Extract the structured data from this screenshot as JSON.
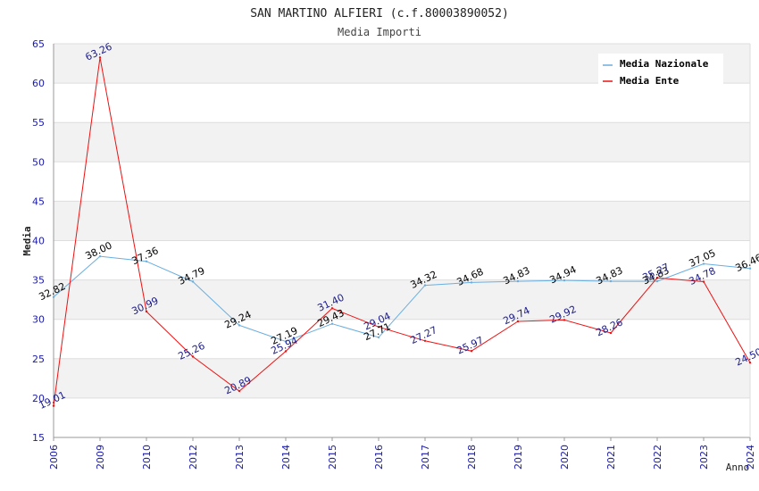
{
  "chart_data": {
    "type": "line",
    "title": "SAN MARTINO ALFIERI (c.f.80003890052)",
    "subtitle": "Media Importi",
    "xlabel": "Anno",
    "ylabel": "Media",
    "ylim": [
      15,
      65
    ],
    "yticks": [
      15,
      20,
      25,
      30,
      35,
      40,
      45,
      50,
      55,
      60,
      65
    ],
    "categories": [
      "2006",
      "2009",
      "2010",
      "2012",
      "2013",
      "2014",
      "2015",
      "2016",
      "2017",
      "2018",
      "2019",
      "2020",
      "2021",
      "2022",
      "2023",
      "2024"
    ],
    "legend_position": "top-right",
    "series": [
      {
        "name": "Media Nazionale",
        "color": "#6aaee0",
        "label_color": "#000000",
        "values": [
          32.82,
          38.0,
          37.36,
          34.79,
          29.24,
          27.19,
          29.43,
          27.71,
          34.32,
          34.68,
          34.83,
          34.94,
          34.83,
          34.83,
          37.05,
          36.46
        ],
        "labels": [
          "32.82",
          "38.00",
          "37.36",
          "34.79",
          "29.24",
          "27.19",
          "29.43",
          "27.71",
          "34.32",
          "34.68",
          "34.83",
          "34.94",
          "34.83",
          "34.83",
          "37.05",
          "36.46"
        ]
      },
      {
        "name": "Media Ente",
        "color": "#ee1111",
        "label_color": "#1a1a8c",
        "values": [
          19.01,
          63.26,
          30.99,
          25.26,
          20.89,
          25.94,
          31.4,
          29.04,
          27.27,
          25.97,
          29.74,
          29.92,
          28.26,
          35.27,
          34.78,
          24.5
        ],
        "labels": [
          "19.01",
          "63.26",
          "30.99",
          "25.26",
          "20.89",
          "25.94",
          "31.40",
          "29.04",
          "27.27",
          "25.97",
          "29.74",
          "29.92",
          "28.26",
          "35.27",
          "34.78",
          "24.50"
        ]
      }
    ],
    "colors": {
      "band": "#f2f2f2",
      "grid": "#dddddd",
      "axis": "#999999",
      "tick_text": "#1a1aaa",
      "title_text": "#222222",
      "subtitle_text": "#444444"
    }
  }
}
